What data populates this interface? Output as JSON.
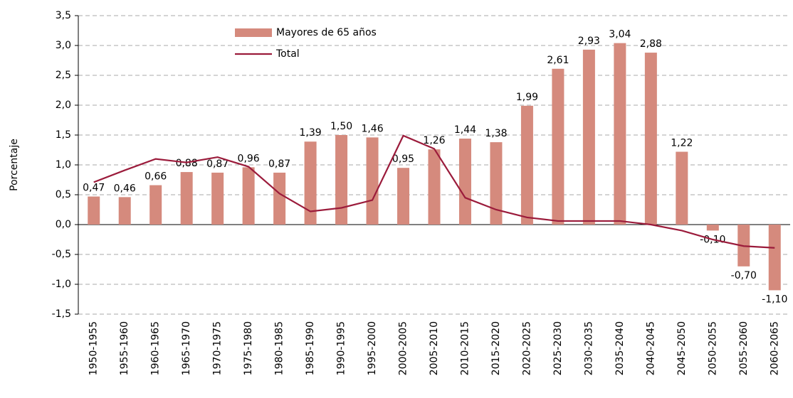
{
  "chart_data": {
    "type": "bar",
    "y_label": "Porcentaje",
    "categories": [
      "1950-1955",
      "1955-1960",
      "1960-1965",
      "1965-1970",
      "1970-1975",
      "1975-1980",
      "1980-1985",
      "1985-1990",
      "1990-1995",
      "1995-2000",
      "2000-2005",
      "2005-2010",
      "2010-2015",
      "2015-2020",
      "2020-2025",
      "2025-2030",
      "2030-2035",
      "2035-2040",
      "2040-2045",
      "2045-2050",
      "2050-2055",
      "2055-2060",
      "2060-2065"
    ],
    "series": [
      {
        "name": "Mayores de 65 años",
        "type": "bar",
        "color": "#d58a7d",
        "values": [
          0.47,
          0.46,
          0.66,
          0.88,
          0.87,
          0.96,
          0.87,
          1.39,
          1.5,
          1.46,
          0.95,
          1.26,
          1.44,
          1.38,
          1.99,
          2.61,
          2.93,
          3.04,
          2.88,
          1.22,
          -0.1,
          -0.7,
          -1.1
        ],
        "value_labels": [
          "0,47",
          "0,46",
          "0,66",
          "0,88",
          "0,87",
          "0,96",
          "0,87",
          "1,39",
          "1,50",
          "1,46",
          "0,95",
          "1,26",
          "1,44",
          "1,38",
          "1,99",
          "2,61",
          "2,93",
          "3,04",
          "2,88",
          "1,22",
          "-0,10",
          "-0,70",
          "-1,10"
        ]
      },
      {
        "name": "Total",
        "type": "line",
        "color": "#9b1b3b",
        "values": [
          0.71,
          0.91,
          1.1,
          1.04,
          1.13,
          0.97,
          0.52,
          0.22,
          0.28,
          0.41,
          1.49,
          1.27,
          0.45,
          0.25,
          0.12,
          0.06,
          0.06,
          0.06,
          0.0,
          -0.1,
          -0.25,
          -0.36,
          -0.39
        ]
      }
    ],
    "ylim": [
      -1.5,
      3.5
    ],
    "yticks": [
      {
        "value": -1.5,
        "label": "-1,5"
      },
      {
        "value": -1.0,
        "label": "-1,0"
      },
      {
        "value": -0.5,
        "label": "-0,5"
      },
      {
        "value": 0,
        "label": "0,0"
      },
      {
        "value": 0.5,
        "label": "0,5"
      },
      {
        "value": 1.0,
        "label": "1,0"
      },
      {
        "value": 1.5,
        "label": "1,5"
      },
      {
        "value": 2.0,
        "label": "2,0"
      },
      {
        "value": 2.5,
        "label": "2,5"
      },
      {
        "value": 3.0,
        "label": "3,0"
      },
      {
        "value": 3.5,
        "label": "3,5"
      }
    ],
    "grid": true
  }
}
